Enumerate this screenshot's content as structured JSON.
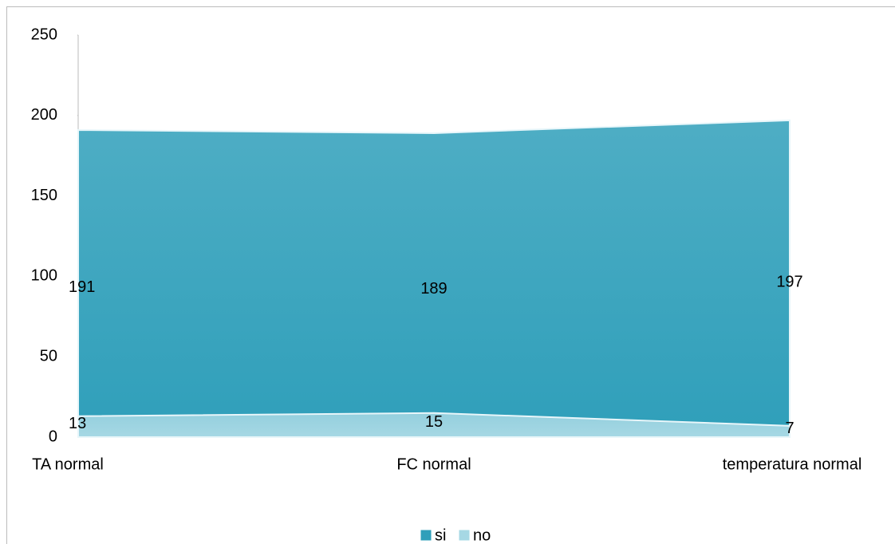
{
  "chart_data": {
    "type": "area",
    "categories": [
      "TA normal",
      "FC normal",
      "temperatura normal"
    ],
    "series": [
      {
        "name": "si",
        "color": "#2f9fba",
        "values": [
          191,
          189,
          197
        ]
      },
      {
        "name": "no",
        "color": "#a6d8e4",
        "values": [
          13,
          15,
          7
        ]
      }
    ],
    "ylim": [
      0,
      250
    ],
    "yticks": [
      0,
      50,
      100,
      150,
      200,
      250
    ],
    "grid": false,
    "legend": "bottom"
  }
}
